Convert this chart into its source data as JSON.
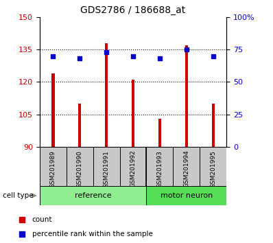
{
  "title": "GDS2786 / 186688_at",
  "samples": [
    "GSM201989",
    "GSM201990",
    "GSM201991",
    "GSM201992",
    "GSM201993",
    "GSM201994",
    "GSM201995"
  ],
  "counts": [
    124,
    110,
    138,
    121,
    103,
    137,
    110
  ],
  "percentiles": [
    70,
    68,
    73,
    70,
    68,
    75,
    70
  ],
  "ylim_left": [
    90,
    150
  ],
  "ylim_right": [
    0,
    100
  ],
  "yticks_left": [
    90,
    105,
    120,
    135,
    150
  ],
  "yticks_right": [
    0,
    25,
    50,
    75,
    100
  ],
  "ytick_labels_right": [
    "0",
    "25",
    "50",
    "75",
    "100%"
  ],
  "bar_color": "#cc0000",
  "scatter_color": "#0000cc",
  "bar_width": 0.12,
  "ref_color": "#90ee90",
  "mn_color": "#90ee90",
  "mn_color_dark": "#44cc44",
  "tick_area_bg": "#c8c8c8",
  "left_axis_color": "#cc0000",
  "right_axis_color": "#0000cc"
}
